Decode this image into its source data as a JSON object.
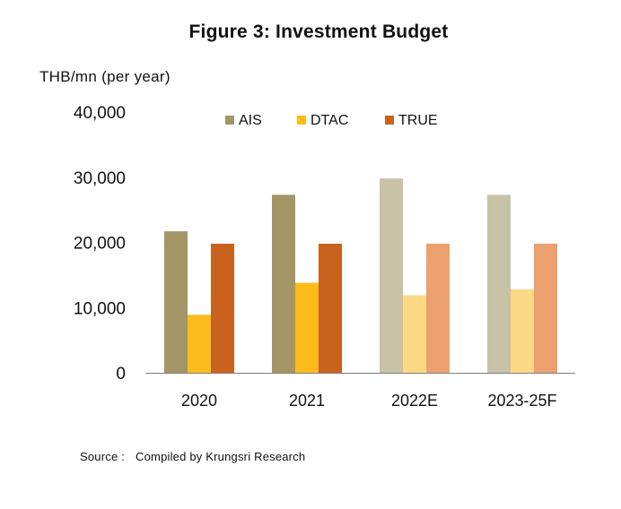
{
  "chart_data": {
    "type": "bar",
    "title": "Figure 3: Investment Budget",
    "ylabel": "THB/mn (per year)",
    "xlabel": "",
    "categories": [
      "2020",
      "2021",
      "2022E",
      "2023-25F"
    ],
    "series": [
      {
        "name": "AIS",
        "values": [
          21700,
          27300,
          29800,
          27300
        ],
        "colors": [
          "#a39566",
          "#a39566",
          "#c8c3a7",
          "#c8c3a7"
        ]
      },
      {
        "name": "DTAC",
        "values": [
          8900,
          13800,
          11900,
          12800
        ],
        "colors": [
          "#fbbc1c",
          "#fbbc1c",
          "#fdd983",
          "#fdd983"
        ]
      },
      {
        "name": "TRUE",
        "values": [
          19800,
          19800,
          19800,
          19800
        ],
        "colors": [
          "#c9621d",
          "#c9621d",
          "#eba06d",
          "#eba06d"
        ]
      }
    ],
    "ylim": [
      0,
      40000
    ],
    "yticks": [
      0,
      10000,
      20000,
      30000,
      40000
    ],
    "ytick_labels": [
      "0",
      "10,000",
      "20,000",
      "30,000",
      "40,000"
    ],
    "grid": false,
    "legend_position": "top-center",
    "legend_colors": [
      "#a39566",
      "#fbbc1c",
      "#c9621d"
    ]
  },
  "footer": {
    "source_label": "Source :",
    "source_text": "Compiled by Krungsri Research"
  }
}
